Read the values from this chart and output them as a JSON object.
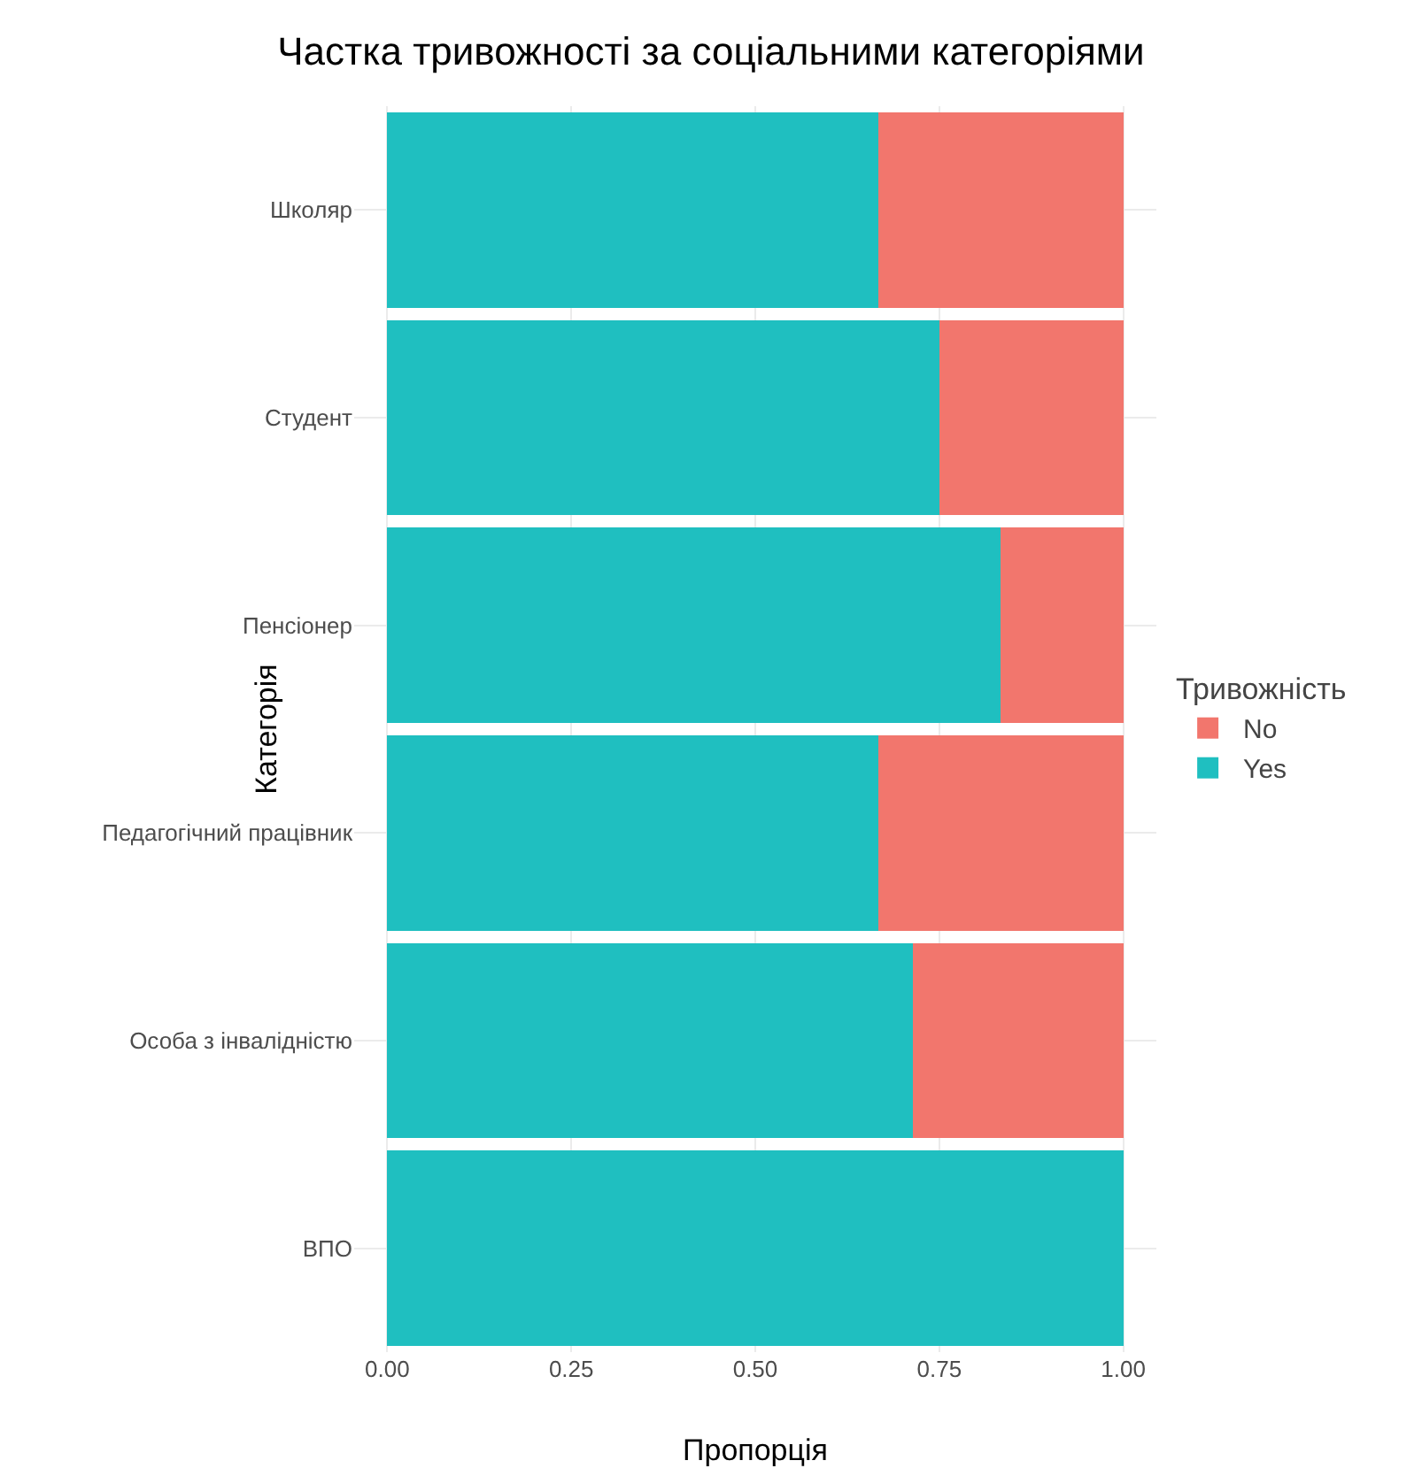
{
  "chart_data": {
    "type": "bar",
    "title": "Частка тривожності за соціальними категоріями",
    "xlabel": "Пропорція",
    "ylabel": "Категорія",
    "legend_title": "Тривожність",
    "orientation": "horizontal",
    "stacked": true,
    "categories": [
      "Школяр",
      "Студент",
      "Пенсіонер",
      "Педагогічний працівник",
      "Особа з інвалідністю",
      "ВПО"
    ],
    "series": [
      {
        "name": "Yes",
        "color": "#1fbfc0",
        "values": [
          0.667,
          0.75,
          0.833,
          0.667,
          0.714,
          1.0
        ]
      },
      {
        "name": "No",
        "color": "#f2766d",
        "values": [
          0.333,
          0.25,
          0.167,
          0.333,
          0.286,
          0.0
        ]
      }
    ],
    "xlim": [
      -0.045,
      1.045
    ],
    "xticks": [
      {
        "value": 0,
        "label": "0.00"
      },
      {
        "value": 0.25,
        "label": "0.25"
      },
      {
        "value": 0.5,
        "label": "0.50"
      },
      {
        "value": 0.75,
        "label": "0.75"
      },
      {
        "value": 1,
        "label": "1.00"
      }
    ],
    "grid": true,
    "legend": "right"
  }
}
